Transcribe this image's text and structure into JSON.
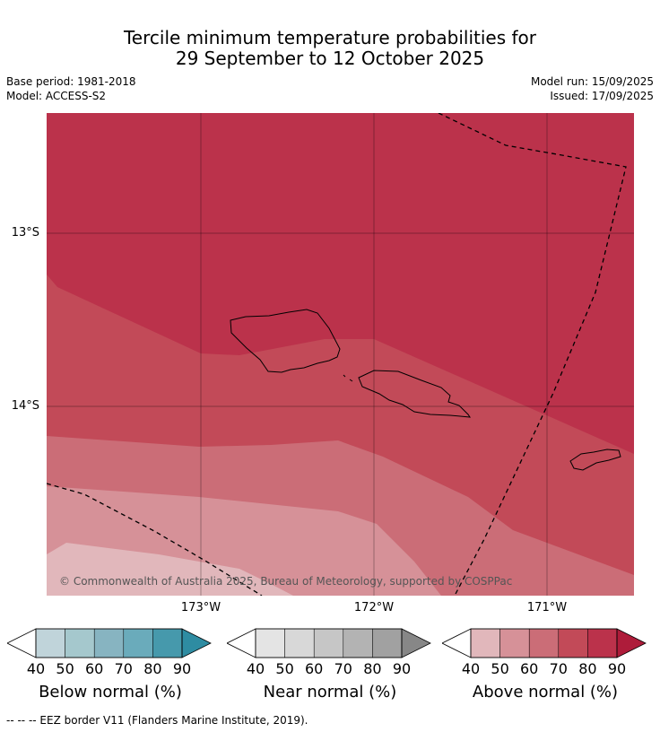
{
  "title": {
    "line1": "Tercile minimum temperature probabilities for",
    "line2": "29 September to 12 October 2025"
  },
  "meta": {
    "base_period": "Base period: 1981-2018",
    "model": "Model: ACCESS-S2",
    "model_run": "Model run: 15/09/2025",
    "issued": "Issued: 17/09/2025"
  },
  "axes": {
    "lat_labels": [
      "13°S",
      "14°S"
    ],
    "lon_labels": [
      "173°W",
      "172°W",
      "171°W"
    ]
  },
  "map": {
    "copyright": "© Commonwealth of Australia 2025, Bureau of Meteorology, supported by COSPPac",
    "region_colors": {
      "above_80_90": "#bb324b",
      "above_70_80": "#c24a58",
      "above_60_70": "#cb6d77",
      "above_50_60": "#d69198",
      "above_40_50": "#e1b7bb"
    },
    "eez_style": "dashed black"
  },
  "legends": [
    {
      "caption": "Below normal (%)",
      "ticks": [
        "40",
        "50",
        "60",
        "70",
        "80",
        "90"
      ],
      "colors": [
        "#c0d4da",
        "#a5c8cd",
        "#87b4c1",
        "#6aabbb",
        "#4699ac",
        "#2e8ca2"
      ]
    },
    {
      "caption": "Near normal (%)",
      "ticks": [
        "40",
        "50",
        "60",
        "70",
        "80",
        "90"
      ],
      "colors": [
        "#e4e4e4",
        "#d8d8d8",
        "#c6c6c6",
        "#b3b3b3",
        "#a1a1a1",
        "#878787"
      ]
    },
    {
      "caption": "Above normal (%)",
      "ticks": [
        "40",
        "50",
        "60",
        "70",
        "80",
        "90"
      ],
      "colors": [
        "#e1b7bb",
        "#d69198",
        "#cb6d77",
        "#c24a58",
        "#bb324b",
        "#ae1c3a"
      ]
    }
  ],
  "footer": "--  --  -- EEZ border V11 (Flanders Marine Institute, 2019)."
}
